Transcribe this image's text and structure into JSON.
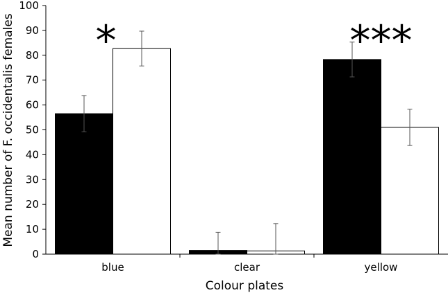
{
  "chart_data": {
    "type": "bar",
    "ylabel": "Mean number of F. occidentalis females",
    "xlabel": "Colour plates",
    "ylim": [
      0,
      100
    ],
    "yticks": [
      0,
      10,
      20,
      30,
      40,
      50,
      60,
      70,
      80,
      90,
      100
    ],
    "categories": [
      "blue",
      "clear",
      "yellow"
    ],
    "grid": false,
    "legend": "none",
    "series": [
      {
        "color": "#000000",
        "values": [
          56.5,
          1.5,
          78.3
        ],
        "errors": [
          7.3,
          7.3,
          7.0
        ]
      },
      {
        "color": "#ffffff",
        "values": [
          82.7,
          1.3,
          51.0
        ],
        "errors": [
          7.0,
          11.0,
          7.3
        ]
      }
    ],
    "annotations": [
      {
        "category": "blue",
        "text": "*"
      },
      {
        "category": "yellow",
        "text": "***"
      }
    ]
  }
}
